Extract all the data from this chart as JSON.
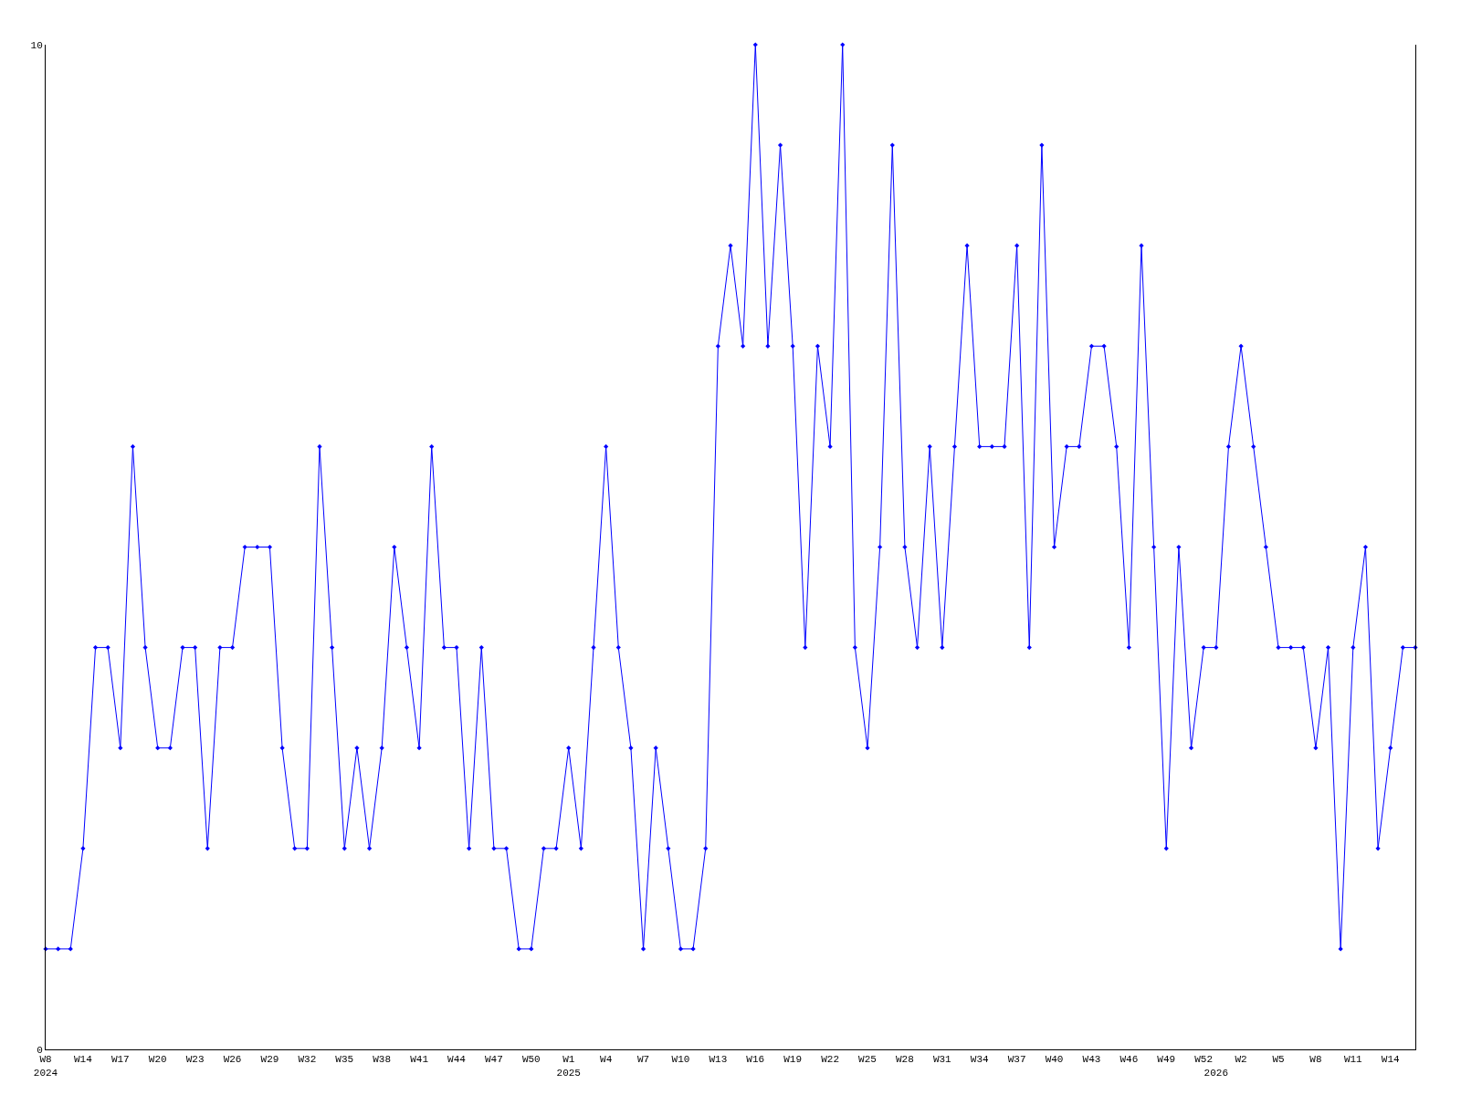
{
  "chart_data": {
    "type": "line",
    "categories": [
      "W8\n2024",
      null,
      null,
      "W14",
      null,
      null,
      "W17",
      null,
      null,
      "W20",
      null,
      null,
      "W23",
      null,
      null,
      "W26",
      null,
      null,
      "W29",
      null,
      null,
      "W32",
      null,
      null,
      "W35",
      null,
      null,
      "W38",
      null,
      null,
      "W41",
      null,
      null,
      "W44",
      null,
      null,
      "W47",
      null,
      null,
      "W50",
      null,
      null,
      "W1\n2025",
      null,
      null,
      "W4",
      null,
      null,
      "W7",
      null,
      null,
      "W10",
      null,
      null,
      "W13",
      null,
      null,
      "W16",
      null,
      null,
      "W19",
      null,
      null,
      "W22",
      null,
      null,
      "W25",
      null,
      null,
      "W28",
      null,
      null,
      "W31",
      null,
      null,
      "W34",
      null,
      null,
      "W37",
      null,
      null,
      "W40",
      null,
      null,
      "W43",
      null,
      null,
      "W46",
      null,
      null,
      "W49",
      null,
      null,
      "W52",
      "\n2026",
      null,
      "W2",
      null,
      null,
      "W5",
      null,
      null,
      "W8",
      null,
      null,
      "W11",
      null,
      null,
      "W14",
      null,
      null
    ],
    "series": [
      {
        "color": "#0000ff",
        "values": [
          1,
          1,
          1,
          2,
          4,
          4,
          3,
          6,
          4,
          3,
          3,
          4,
          4,
          2,
          4,
          4,
          5,
          5,
          5,
          3,
          2,
          2,
          6,
          4,
          2,
          3,
          2,
          3,
          5,
          4,
          3,
          6,
          4,
          4,
          2,
          4,
          2,
          2,
          1,
          1,
          2,
          2,
          3,
          2,
          4,
          6,
          4,
          3,
          1,
          3,
          2,
          1,
          1,
          2,
          7,
          8,
          7,
          10,
          7,
          9,
          7,
          4,
          7,
          6,
          10,
          4,
          3,
          5,
          9,
          5,
          4,
          6,
          4,
          6,
          8,
          6,
          6,
          6,
          8,
          4,
          9,
          5,
          6,
          6,
          7,
          7,
          6,
          4,
          8,
          5,
          2,
          5,
          3,
          4,
          4,
          6,
          7,
          6,
          5,
          4,
          4,
          4,
          3,
          4,
          1,
          4,
          5,
          2,
          3,
          4,
          4
        ]
      }
    ],
    "ylim": [
      0,
      10
    ],
    "yticks": [
      0,
      10
    ],
    "legend": false,
    "marker": "diamond",
    "line_style": "solid"
  }
}
